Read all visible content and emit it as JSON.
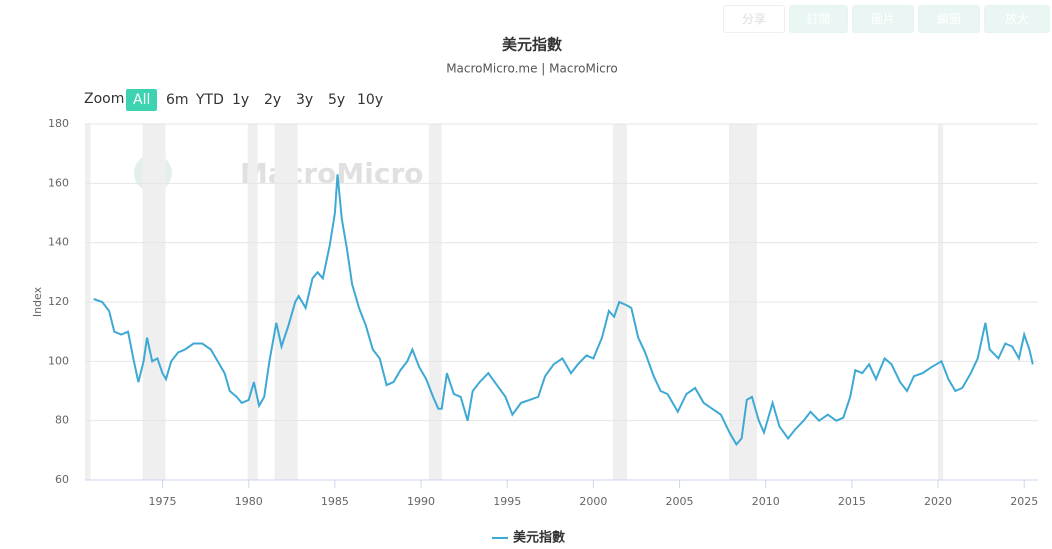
{
  "toolbar": [
    "分享",
    "訂閱",
    "圖片",
    "編圖",
    "放大"
  ],
  "zoom": {
    "label": "Zoom",
    "options": [
      "All",
      "6m",
      "YTD",
      "1y",
      "2y",
      "3y",
      "5y",
      "10y"
    ]
  },
  "chart_data": {
    "type": "line",
    "title": "美元指數",
    "subtitle": "MacroMicro.me | MacroMicro",
    "y_label": "Index",
    "watermark": "MacroMicro",
    "xlim": [
      1970.5,
      2025.8
    ],
    "xticks": [
      1975,
      1980,
      1985,
      1990,
      1995,
      2000,
      2005,
      2010,
      2015,
      2020,
      2025
    ],
    "ylim": [
      60,
      180
    ],
    "yticks": [
      60,
      80,
      100,
      120,
      140,
      160,
      180
    ],
    "grid": true,
    "recessions": [
      [
        1970.5,
        1970.82
      ],
      [
        1973.84,
        1975.17
      ],
      [
        1979.94,
        1980.52
      ],
      [
        1981.5,
        1982.84
      ],
      [
        1990.45,
        1991.2
      ],
      [
        2001.13,
        2001.95
      ],
      [
        2007.87,
        2009.5
      ],
      [
        2020.0,
        2020.3
      ]
    ],
    "series": [
      {
        "name": "美元指數",
        "color": "#3ea9d4",
        "x": [
          1971.0,
          1971.5,
          1971.9,
          1972.2,
          1972.6,
          1973.0,
          1973.3,
          1973.6,
          1973.9,
          1974.1,
          1974.4,
          1974.7,
          1975.0,
          1975.2,
          1975.5,
          1975.9,
          1976.3,
          1976.8,
          1977.3,
          1977.8,
          1978.2,
          1978.6,
          1978.9,
          1979.3,
          1979.6,
          1980.0,
          1980.3,
          1980.6,
          1980.9,
          1981.2,
          1981.6,
          1981.9,
          1982.3,
          1982.7,
          1982.9,
          1983.3,
          1983.7,
          1984.0,
          1984.3,
          1984.7,
          1985.0,
          1985.15,
          1985.4,
          1985.7,
          1986.0,
          1986.4,
          1986.8,
          1987.2,
          1987.6,
          1988.0,
          1988.4,
          1988.8,
          1989.2,
          1989.5,
          1989.9,
          1990.3,
          1990.7,
          1991.0,
          1991.2,
          1991.5,
          1991.9,
          1992.3,
          1992.7,
          1993.0,
          1993.4,
          1993.9,
          1994.4,
          1994.9,
          1995.3,
          1995.8,
          1996.3,
          1996.8,
          1997.2,
          1997.7,
          1998.2,
          1998.7,
          1999.1,
          1999.6,
          2000.0,
          2000.5,
          2000.9,
          2001.2,
          2001.5,
          2001.9,
          2002.2,
          2002.6,
          2003.0,
          2003.5,
          2003.9,
          2004.3,
          2004.9,
          2005.4,
          2005.9,
          2006.4,
          2006.9,
          2007.4,
          2007.9,
          2008.3,
          2008.6,
          2008.9,
          2009.2,
          2009.6,
          2009.9,
          2010.4,
          2010.8,
          2011.3,
          2011.7,
          2012.2,
          2012.6,
          2013.1,
          2013.6,
          2014.1,
          2014.5,
          2014.9,
          2015.2,
          2015.6,
          2016.0,
          2016.4,
          2016.9,
          2017.3,
          2017.8,
          2018.2,
          2018.6,
          2019.1,
          2019.6,
          2020.2,
          2020.6,
          2021.0,
          2021.4,
          2021.9,
          2022.3,
          2022.75,
          2023.0,
          2023.5,
          2023.9,
          2024.3,
          2024.7,
          2025.0,
          2025.3,
          2025.5
        ],
        "values": [
          121,
          120,
          117,
          110,
          109,
          110,
          101,
          93,
          100,
          108,
          100,
          101,
          96,
          94,
          100,
          103,
          104,
          106,
          106,
          104,
          100,
          96,
          90,
          88,
          86,
          87,
          93,
          85,
          88,
          100,
          113,
          105,
          112,
          120,
          122,
          118,
          128,
          130,
          128,
          139,
          150,
          163,
          148,
          138,
          126,
          118,
          112,
          104,
          101,
          92,
          93,
          97,
          100,
          104,
          98,
          94,
          88,
          84,
          84,
          96,
          89,
          88,
          80,
          90,
          93,
          96,
          92,
          88,
          82,
          86,
          87,
          88,
          95,
          99,
          101,
          96,
          99,
          102,
          101,
          108,
          117,
          115,
          120,
          119,
          118,
          108,
          103,
          95,
          90,
          89,
          83,
          89,
          91,
          86,
          84,
          82,
          76,
          72,
          74,
          87,
          88,
          80,
          76,
          86,
          78,
          74,
          77,
          80,
          83,
          80,
          82,
          80,
          81,
          88,
          97,
          96,
          99,
          94,
          101,
          99,
          93,
          90,
          95,
          96,
          98,
          100,
          94,
          90,
          91,
          96,
          101,
          113,
          104,
          101,
          106,
          105,
          101,
          109,
          104,
          99
        ]
      }
    ]
  }
}
